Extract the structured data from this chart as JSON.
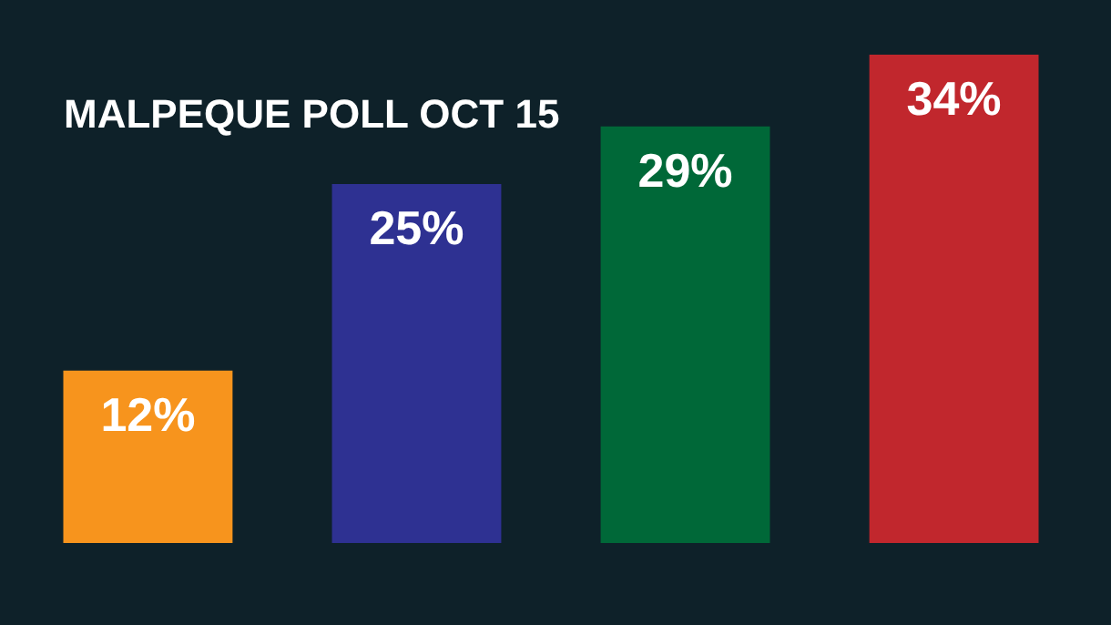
{
  "chart_data": {
    "type": "bar",
    "title": "MALPEQUE POLL OCT 15",
    "categories": [
      null,
      null,
      null,
      null
    ],
    "values": [
      12,
      25,
      29,
      34
    ],
    "colors": [
      "#f7941d",
      "#2e3192",
      "#006838",
      "#c1272d"
    ],
    "value_labels": [
      "12%",
      "25%",
      "29%",
      "34%"
    ],
    "tick_labels": false
  }
}
